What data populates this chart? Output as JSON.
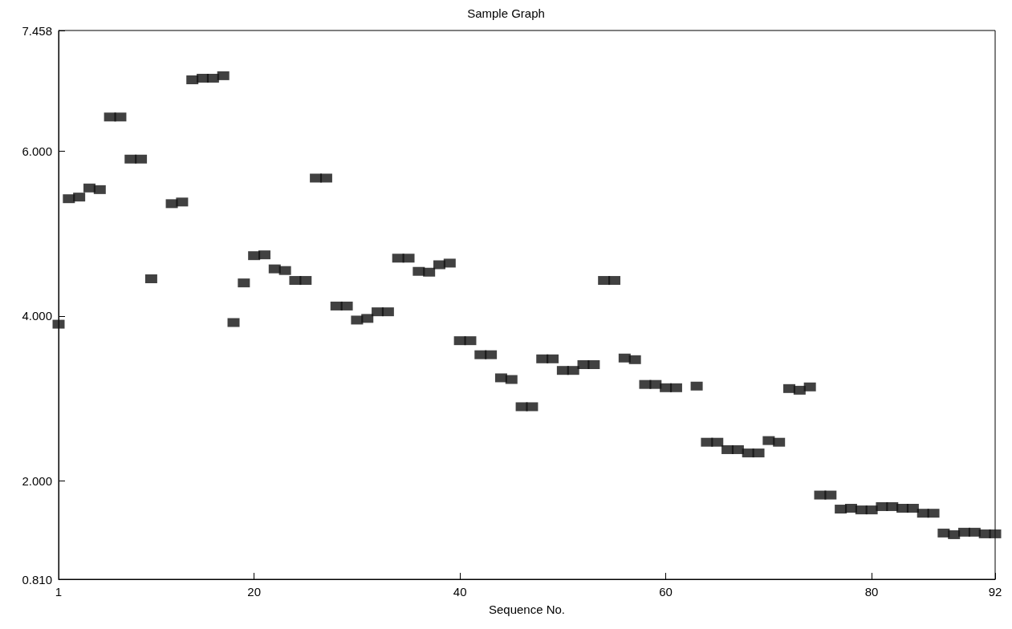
{
  "chart_data": {
    "type": "scatter",
    "title": "Sample Graph",
    "xlabel": "Sequence No.",
    "x": [
      1,
      2,
      3,
      4,
      5,
      6,
      7,
      8,
      9,
      10,
      11,
      12,
      13,
      14,
      15,
      16,
      17,
      18,
      19,
      20,
      21,
      22,
      23,
      24,
      25,
      26,
      27,
      28,
      29,
      30,
      31,
      32,
      33,
      34,
      35,
      36,
      37,
      38,
      39,
      40,
      41,
      42,
      43,
      44,
      45,
      46,
      47,
      48,
      49,
      50,
      51,
      52,
      53,
      54,
      55,
      56,
      57,
      58,
      59,
      60,
      61,
      62,
      63,
      64,
      65,
      66,
      67,
      68,
      69,
      70,
      71,
      72,
      73,
      74,
      75,
      76,
      77,
      78,
      79,
      80,
      81,
      82,
      83,
      84,
      85,
      86,
      87,
      88,
      89,
      90,
      91,
      92
    ],
    "series": [
      {
        "color": "#111111",
        "values": [
          3.9,
          5.42,
          5.44,
          5.55,
          5.53,
          6.41,
          6.41,
          5.9,
          5.9,
          4.45,
          null,
          5.36,
          5.38,
          6.86,
          6.88,
          6.88,
          6.91,
          3.92,
          4.4,
          4.73,
          4.74,
          4.57,
          4.55,
          4.43,
          4.43,
          5.67,
          5.67,
          4.12,
          4.12,
          3.95,
          3.97,
          4.05,
          4.05,
          4.7,
          4.7,
          4.54,
          4.53,
          4.62,
          4.64,
          3.7,
          3.7,
          3.53,
          3.53,
          3.25,
          3.23,
          2.9,
          2.9,
          3.48,
          3.48,
          3.34,
          3.34,
          3.41,
          3.41,
          4.43,
          4.43,
          3.49,
          3.47,
          3.17,
          3.17,
          3.13,
          3.13,
          null,
          3.15,
          2.47,
          2.47,
          2.38,
          2.38,
          2.34,
          2.34,
          2.49,
          2.47,
          3.12,
          3.1,
          3.14,
          1.83,
          1.83,
          1.66,
          1.67,
          1.65,
          1.65,
          1.69,
          1.69,
          1.67,
          1.67,
          1.61,
          1.61,
          1.37,
          1.35,
          1.38,
          1.38,
          1.36,
          1.36
        ]
      }
    ],
    "xlim": [
      1,
      92
    ],
    "xticks": [
      1,
      20,
      40,
      60,
      80,
      92
    ],
    "ylim": [
      0.81,
      7.458
    ],
    "yticks": [
      {
        "value": 0.81,
        "label": "0.810"
      },
      {
        "value": 2,
        "label": "2.000"
      },
      {
        "value": 4,
        "label": "4.000"
      },
      {
        "value": 6,
        "label": "6.000"
      },
      {
        "value": 7.458,
        "label": "7.458"
      }
    ],
    "marker": "square",
    "grid": false
  }
}
